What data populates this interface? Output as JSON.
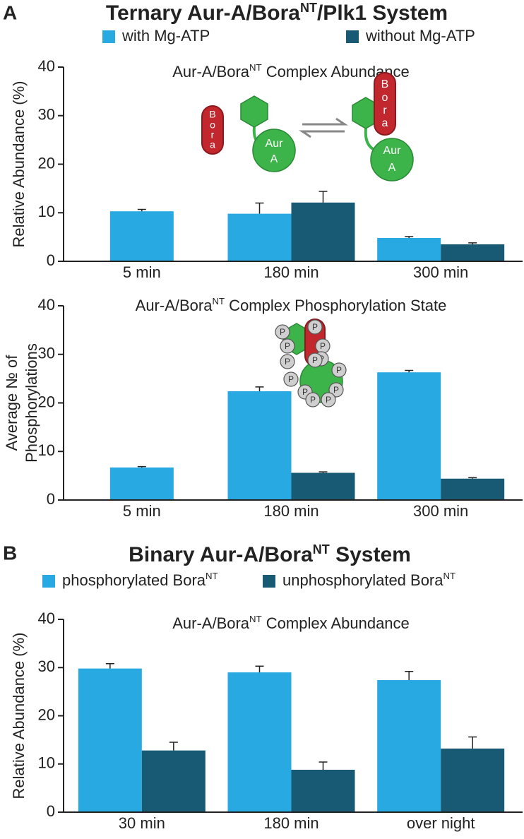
{
  "panel_a": {
    "label": "A",
    "title": [
      {
        "text": "Ternary Aur-A/Bora"
      },
      {
        "text": "NT",
        "sup": true
      },
      {
        "text": "/Plk1 System"
      }
    ]
  },
  "panel_b": {
    "label": "B",
    "title": [
      {
        "text": "Binary Aur-A/Bora"
      },
      {
        "text": "NT",
        "sup": true
      },
      {
        "text": " System"
      }
    ]
  },
  "diagram": {
    "bora": [
      "B",
      "o",
      "r",
      "a"
    ],
    "aur": "Aur",
    "a": "A",
    "p": "P"
  },
  "chart_data": [
    {
      "type": "bar",
      "title": [
        {
          "text": "Aur-A/Bora"
        },
        {
          "text": "NT",
          "sup": true
        },
        {
          "text": " Complex Abundance"
        }
      ],
      "y_label": [
        "Relative Abundance (%)"
      ],
      "legend": true,
      "categories": [
        "5 min",
        "180 min",
        "300 min"
      ],
      "series": [
        {
          "name": [
            {
              "text": "with Mg-ATP"
            }
          ],
          "color": "#29a9e1",
          "values": [
            10.3,
            9.8,
            4.8
          ],
          "errors": [
            0.4,
            2.2,
            0.3
          ]
        },
        {
          "name": [
            {
              "text": "without Mg-ATP"
            }
          ],
          "color": "#185a73",
          "values": [
            null,
            12.1,
            3.5
          ],
          "errors": [
            null,
            2.3,
            0.3
          ]
        }
      ],
      "ylim": [
        0,
        40
      ],
      "yticks": [
        0,
        10,
        20,
        30,
        40
      ]
    },
    {
      "type": "bar",
      "title": [
        {
          "text": "Aur-A/Bora"
        },
        {
          "text": "NT",
          "sup": true
        },
        {
          "text": " Complex Phosphorylation State"
        }
      ],
      "y_label": [
        "Average № of",
        "Phosphorylations"
      ],
      "legend": false,
      "categories": [
        "5 min",
        "180 min",
        "300 min"
      ],
      "series": [
        {
          "color": "#29a9e1",
          "values": [
            6.7,
            22.4,
            26.3
          ],
          "errors": [
            0.2,
            0.9,
            0.4
          ]
        },
        {
          "color": "#185a73",
          "values": [
            null,
            5.6,
            4.4
          ],
          "errors": [
            null,
            0.2,
            0.2
          ]
        }
      ],
      "ylim": [
        0,
        40
      ],
      "yticks": [
        0,
        10,
        20,
        30,
        40
      ]
    },
    {
      "type": "bar",
      "title": [
        {
          "text": "Aur-A/Bora"
        },
        {
          "text": "NT",
          "sup": true
        },
        {
          "text": " Complex Abundance"
        }
      ],
      "y_label": [
        "Relative Abundance (%)"
      ],
      "legend": true,
      "categories": [
        "30 min",
        "180 min",
        "over night"
      ],
      "series": [
        {
          "name": [
            {
              "text": "phosphorylated Bora"
            },
            {
              "text": "NT",
              "sup": true
            }
          ],
          "color": "#29a9e1",
          "values": [
            29.8,
            29.0,
            27.4
          ],
          "errors": [
            1.0,
            1.3,
            1.8
          ]
        },
        {
          "name": [
            {
              "text": "unphosphorylated Bora"
            },
            {
              "text": "NT",
              "sup": true
            }
          ],
          "color": "#185a73",
          "values": [
            12.8,
            8.8,
            13.2
          ],
          "errors": [
            1.7,
            1.6,
            2.4
          ]
        }
      ],
      "ylim": [
        0,
        40
      ],
      "yticks": [
        0,
        10,
        20,
        30,
        40
      ]
    }
  ]
}
